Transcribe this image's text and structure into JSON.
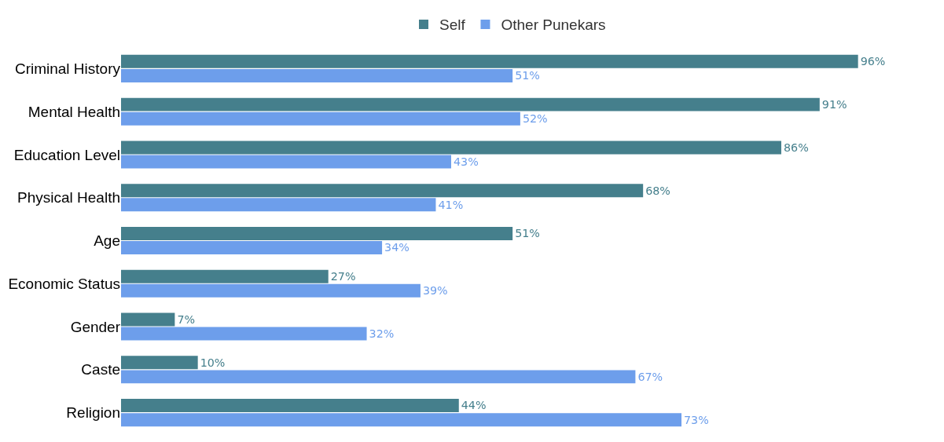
{
  "chart_data": {
    "type": "bar",
    "orientation": "horizontal",
    "categories": [
      "Criminal History",
      "Mental Health",
      "Education Level",
      "Physical Health",
      "Age",
      "Economic Status",
      "Gender",
      "Caste",
      "Religion"
    ],
    "series": [
      {
        "name": "Self",
        "color": "#457f8c",
        "values": [
          96,
          91,
          86,
          68,
          51,
          27,
          7,
          10,
          44
        ],
        "value_labels": [
          "96%",
          "91%",
          "86%",
          "68%",
          "51%",
          "27%",
          "7%",
          "10%",
          "44%"
        ]
      },
      {
        "name": "Other Punekars",
        "color": "#6d9eeb",
        "values": [
          51,
          52,
          43,
          41,
          34,
          39,
          32,
          67,
          73
        ],
        "value_labels": [
          "51%",
          "52%",
          "43%",
          "41%",
          "34%",
          "39%",
          "32%",
          "67%",
          "73%"
        ]
      }
    ],
    "legend": "top",
    "grid": false
  }
}
